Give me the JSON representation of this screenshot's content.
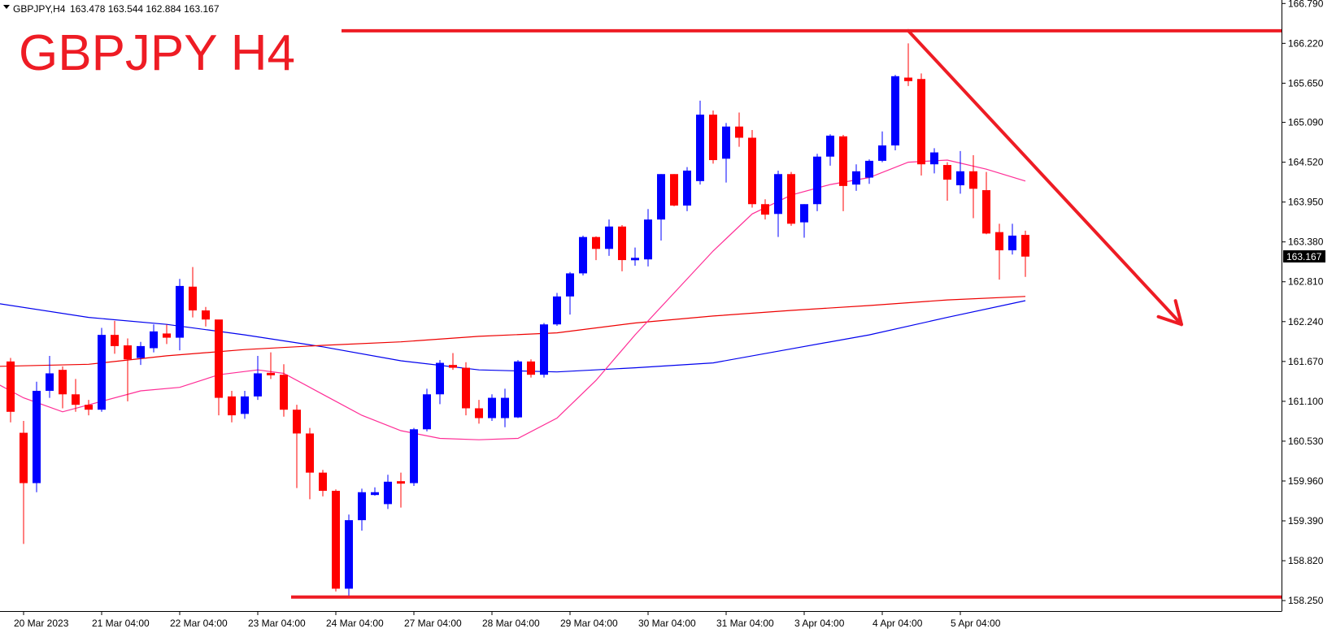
{
  "header": {
    "symbol_label": "GBPJPY,H4",
    "ohlc": "163.478 163.544 162.884 163.167"
  },
  "annotation_title": "GBPJPY H4",
  "current_price_label": "163.167",
  "colors": {
    "bull": "#0000ff",
    "bear": "#ff0000",
    "ma_fast": "#ff2d96",
    "ma_mid": "#ee0000",
    "ma_slow": "#0000ee",
    "annotation": "#ee1c24",
    "price_tag_bg": "#000000",
    "price_tag_text": "#ffffff"
  },
  "chart_data": {
    "type": "candlestick",
    "y_ticks": [
      "166.790",
      "166.220",
      "165.650",
      "165.090",
      "164.520",
      "163.950",
      "163.380",
      "162.810",
      "162.240",
      "161.670",
      "161.100",
      "160.530",
      "159.960",
      "159.390",
      "158.820",
      "158.250"
    ],
    "ylim": [
      158.1,
      166.84
    ],
    "x_ticks": [
      "20 Mar 2023",
      "21 Mar 04:00",
      "22 Mar 04:00",
      "23 Mar 04:00",
      "24 Mar 04:00",
      "27 Mar 04:00",
      "28 Mar 04:00",
      "29 Mar 04:00",
      "30 Mar 04:00",
      "31 Mar 04:00",
      "3 Apr 04:00",
      "4 Apr 04:00",
      "5 Apr 04:00"
    ],
    "x_tick_bar_index": [
      1,
      7,
      13,
      19,
      25,
      31,
      37,
      43,
      49,
      55,
      61,
      67,
      73
    ],
    "bars_visible": 110,
    "candles": [
      [
        161.67,
        161.72,
        160.8,
        160.95
      ],
      [
        160.65,
        160.82,
        159.06,
        159.93
      ],
      [
        159.93,
        161.38,
        159.8,
        161.25
      ],
      [
        161.25,
        161.75,
        161.15,
        161.5
      ],
      [
        161.55,
        161.6,
        161.0,
        161.2
      ],
      [
        161.2,
        161.42,
        160.95,
        161.05
      ],
      [
        161.05,
        161.12,
        160.9,
        160.98
      ],
      [
        160.98,
        162.15,
        160.95,
        162.05
      ],
      [
        162.05,
        162.25,
        161.78,
        161.89
      ],
      [
        161.9,
        162.0,
        161.1,
        161.7
      ],
      [
        161.72,
        161.95,
        161.62,
        161.89
      ],
      [
        161.86,
        162.2,
        161.8,
        162.1
      ],
      [
        162.07,
        162.2,
        161.92,
        162.01
      ],
      [
        162.01,
        162.85,
        161.83,
        162.75
      ],
      [
        162.74,
        163.02,
        162.3,
        162.4
      ],
      [
        162.4,
        162.45,
        162.17,
        162.27
      ],
      [
        162.27,
        162.25,
        160.9,
        161.15
      ],
      [
        161.17,
        161.25,
        160.8,
        160.9
      ],
      [
        160.92,
        161.25,
        160.85,
        161.17
      ],
      [
        161.17,
        161.75,
        161.12,
        161.5
      ],
      [
        161.5,
        161.8,
        161.42,
        161.48
      ],
      [
        161.48,
        161.63,
        160.88,
        160.98
      ],
      [
        160.98,
        161.05,
        159.86,
        160.64
      ],
      [
        160.64,
        160.72,
        159.7,
        160.08
      ],
      [
        160.08,
        160.12,
        159.74,
        159.82
      ],
      [
        159.82,
        159.84,
        158.38,
        158.42
      ],
      [
        158.42,
        159.48,
        158.28,
        159.4
      ],
      [
        159.4,
        159.85,
        159.25,
        159.8
      ],
      [
        159.76,
        159.87,
        159.75,
        159.8
      ],
      [
        159.63,
        160.05,
        159.56,
        159.95
      ],
      [
        159.95,
        160.08,
        159.58,
        159.93
      ],
      [
        159.93,
        160.72,
        159.89,
        160.7
      ],
      [
        160.7,
        161.28,
        160.67,
        161.2
      ],
      [
        161.2,
        161.69,
        161.06,
        161.65
      ],
      [
        161.62,
        161.79,
        161.55,
        161.58
      ],
      [
        161.58,
        161.66,
        160.9,
        161.0
      ],
      [
        161.0,
        161.12,
        160.78,
        160.86
      ],
      [
        160.86,
        161.2,
        160.82,
        161.15
      ],
      [
        160.86,
        161.28,
        160.73,
        161.15
      ],
      [
        160.87,
        161.69,
        160.86,
        161.67
      ],
      [
        161.67,
        161.7,
        161.44,
        161.48
      ],
      [
        161.48,
        162.22,
        161.44,
        162.2
      ],
      [
        162.2,
        162.65,
        162.18,
        162.6
      ],
      [
        162.6,
        162.95,
        162.34,
        162.93
      ],
      [
        162.93,
        163.47,
        162.9,
        163.45
      ],
      [
        163.45,
        163.46,
        163.12,
        163.28
      ],
      [
        163.28,
        163.7,
        163.18,
        163.6
      ],
      [
        163.6,
        163.62,
        162.96,
        163.12
      ],
      [
        163.13,
        163.3,
        163.04,
        163.14
      ],
      [
        163.13,
        163.85,
        163.03,
        163.7
      ],
      [
        163.7,
        164.35,
        163.4,
        164.35
      ],
      [
        164.35,
        164.35,
        163.89,
        163.9
      ],
      [
        163.9,
        164.45,
        163.82,
        164.4
      ],
      [
        164.25,
        165.4,
        164.2,
        165.2
      ],
      [
        165.2,
        165.26,
        164.5,
        164.55
      ],
      [
        164.57,
        165.08,
        164.23,
        165.03
      ],
      [
        165.03,
        165.23,
        164.74,
        164.87
      ],
      [
        164.87,
        164.98,
        163.87,
        163.92
      ],
      [
        163.92,
        163.99,
        163.7,
        163.77
      ],
      [
        163.78,
        164.4,
        163.45,
        164.35
      ],
      [
        164.35,
        164.38,
        163.61,
        163.64
      ],
      [
        163.66,
        163.92,
        163.44,
        163.92
      ],
      [
        163.92,
        164.64,
        163.82,
        164.6
      ],
      [
        164.6,
        164.92,
        164.47,
        164.9
      ],
      [
        164.89,
        164.91,
        163.82,
        164.18
      ],
      [
        164.2,
        164.49,
        164.11,
        164.39
      ],
      [
        164.3,
        164.56,
        164.21,
        164.54
      ],
      [
        164.54,
        164.96,
        164.52,
        164.76
      ],
      [
        164.76,
        165.77,
        164.69,
        165.75
      ],
      [
        165.73,
        166.22,
        165.61,
        165.68
      ],
      [
        165.71,
        165.79,
        164.33,
        164.49
      ],
      [
        164.49,
        164.72,
        164.36,
        164.66
      ],
      [
        164.48,
        164.52,
        163.97,
        164.27
      ],
      [
        164.19,
        164.68,
        164.07,
        164.39
      ],
      [
        164.39,
        164.62,
        163.72,
        164.14
      ],
      [
        164.12,
        164.38,
        163.49,
        163.5
      ],
      [
        163.52,
        163.64,
        162.84,
        163.26
      ],
      [
        163.26,
        163.64,
        163.2,
        163.47
      ],
      [
        163.48,
        163.54,
        162.88,
        163.17
      ]
    ],
    "ma_fast": [
      [
        -1,
        161.35
      ],
      [
        1,
        161.15
      ],
      [
        4,
        160.95
      ],
      [
        7,
        161.1
      ],
      [
        10,
        161.25
      ],
      [
        13,
        161.3
      ],
      [
        16,
        161.48
      ],
      [
        19,
        161.55
      ],
      [
        21,
        161.5
      ],
      [
        24,
        161.2
      ],
      [
        27,
        160.9
      ],
      [
        30,
        160.68
      ],
      [
        33,
        160.57
      ],
      [
        36,
        160.55
      ],
      [
        39,
        160.57
      ],
      [
        42,
        160.86
      ],
      [
        45,
        161.4
      ],
      [
        48,
        162.05
      ],
      [
        51,
        162.65
      ],
      [
        54,
        163.25
      ],
      [
        57,
        163.78
      ],
      [
        60,
        164.05
      ],
      [
        63,
        164.2
      ],
      [
        66,
        164.3
      ],
      [
        69,
        164.52
      ],
      [
        72,
        164.55
      ],
      [
        75,
        164.42
      ],
      [
        78,
        164.25
      ]
    ],
    "ma_mid": [
      [
        -1,
        161.6
      ],
      [
        6,
        161.63
      ],
      [
        12,
        161.75
      ],
      [
        18,
        161.84
      ],
      [
        24,
        161.9
      ],
      [
        30,
        161.95
      ],
      [
        36,
        162.03
      ],
      [
        42,
        162.08
      ],
      [
        48,
        162.22
      ],
      [
        54,
        162.32
      ],
      [
        60,
        162.4
      ],
      [
        66,
        162.47
      ],
      [
        72,
        162.55
      ],
      [
        78,
        162.6
      ]
    ],
    "ma_slow": [
      [
        -1,
        162.5
      ],
      [
        6,
        162.3
      ],
      [
        12,
        162.2
      ],
      [
        18,
        162.05
      ],
      [
        24,
        161.88
      ],
      [
        30,
        161.68
      ],
      [
        36,
        161.55
      ],
      [
        42,
        161.52
      ],
      [
        48,
        161.58
      ],
      [
        54,
        161.65
      ],
      [
        60,
        161.85
      ],
      [
        66,
        162.05
      ],
      [
        72,
        162.3
      ],
      [
        78,
        162.54
      ]
    ],
    "resistance_level": 166.4,
    "support_level": 158.3,
    "trend_arrow": {
      "from": [
        69,
        166.4
      ],
      "to": [
        90,
        162.2
      ]
    }
  }
}
